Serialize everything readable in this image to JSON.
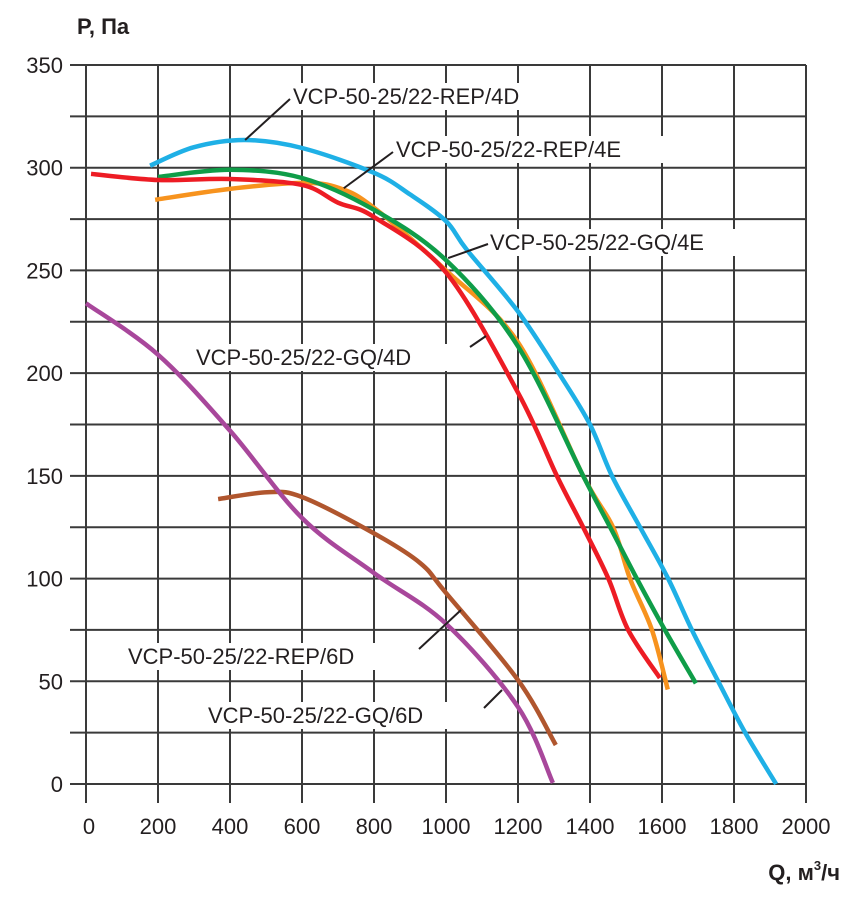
{
  "chart_data": {
    "type": "line",
    "title": "",
    "xlabel": "Q, м³/ч",
    "xlabel_main": "Q, м",
    "xlabel_sup": "3",
    "xlabel_tail": "/ч",
    "ylabel": "P, Па",
    "xlim": [
      0,
      2000
    ],
    "ylim": [
      0,
      350
    ],
    "x_ticks": [
      0,
      200,
      400,
      600,
      800,
      1000,
      1200,
      1400,
      1600,
      1800,
      2000
    ],
    "x_tick_labels": [
      "0",
      "200",
      "400",
      "600",
      "800",
      "1000",
      "1200",
      "1400",
      "1600",
      "1800",
      "2000"
    ],
    "y_ticks": [
      0,
      50,
      100,
      150,
      200,
      250,
      300,
      350
    ],
    "y_tick_labels": [
      "0",
      "50",
      "100",
      "150",
      "200",
      "250",
      "300",
      "350"
    ],
    "y_grid_step": 25,
    "x_grid_step": 200,
    "grid": true,
    "legend": "inline-labels",
    "series": [
      {
        "name": "VCP-50-25/22-REP/4D",
        "color": "#1fb0e6",
        "x": [
          178,
          300,
          442,
          600,
          800,
          900,
          1000,
          1058,
          1200,
          1317,
          1400,
          1461,
          1539,
          1617,
          1683,
          1756,
          1831,
          1917
        ],
        "y": [
          301,
          310,
          313.5,
          309.6,
          297.5,
          287,
          274,
          260,
          230,
          199,
          175,
          150,
          125,
          100,
          75,
          50,
          25,
          0
        ],
        "label_anchor": [
          442,
          313.5
        ]
      },
      {
        "name": "VCP-50-25/22-REP/4E",
        "color": "#f7931e",
        "x": [
          192,
          400,
          600,
          705,
          800,
          1000,
          1200,
          1381,
          1464,
          1511,
          1572,
          1616
        ],
        "y": [
          284.4,
          289.7,
          292.6,
          290,
          280.5,
          250,
          215,
          150,
          125,
          100,
          75,
          46
        ],
        "label_anchor": [
          716,
          290
        ]
      },
      {
        "name": "VCP-50-25/22-GQ/4E",
        "color": "#0f9d48",
        "x": [
          200,
          400,
          600,
          800,
          1000,
          1200,
          1381,
          1456,
          1530,
          1608,
          1694
        ],
        "y": [
          295.5,
          299,
          295,
          279.5,
          255,
          213,
          150,
          125,
          100,
          75,
          49
        ],
        "label_anchor": [
          1006,
          256
        ]
      },
      {
        "name": "VCP-50-25/22-GQ/4D",
        "color": "#ed1c24",
        "x": [
          14,
          200,
          400,
          600,
          700,
          800,
          1000,
          1200,
          1308,
          1381,
          1451,
          1506,
          1594
        ],
        "y": [
          297,
          294,
          294.5,
          291.6,
          283,
          276,
          249,
          190.5,
          150,
          125,
          100,
          75,
          51.6
        ],
        "label_anchor": [
          1108,
          219
        ]
      },
      {
        "name": "VCP-50-25/22-REP/6D",
        "color": "#b0562e",
        "x": [
          367,
          503,
          600,
          800,
          928,
          1000,
          1200,
          1305
        ],
        "y": [
          138.7,
          142,
          139.7,
          122,
          107.6,
          93,
          50.6,
          19
        ],
        "label_anchor": [
          1042,
          85
        ]
      },
      {
        "name": "VCP-50-25/22-GQ/6D",
        "color": "#a8479b",
        "x": [
          0,
          200,
          400,
          600,
          800,
          1000,
          1200,
          1297
        ],
        "y": [
          234,
          209,
          172,
          129.5,
          102.7,
          78,
          37.5,
          0.5
        ],
        "label_anchor": [
          1156,
          46
        ]
      }
    ]
  }
}
